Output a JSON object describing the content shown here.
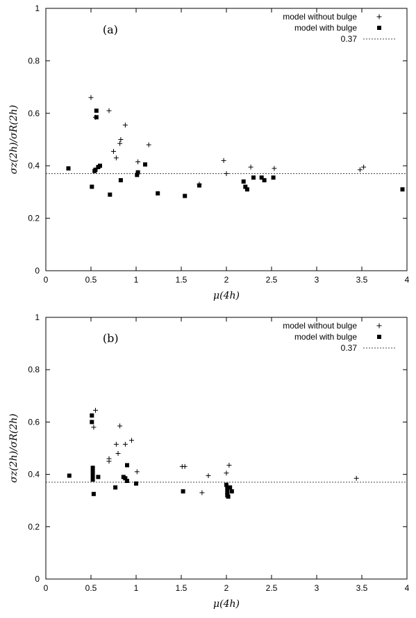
{
  "chart_data": [
    {
      "type": "scatter",
      "panel_label": "(a)",
      "xlabel": "μ(4h)",
      "ylabel": "σz(2h)/σR(2h)",
      "xlim": [
        0,
        4
      ],
      "ylim": [
        0,
        1
      ],
      "xticks": [
        "0",
        "0.5",
        "1",
        "1.5",
        "2",
        "2.5",
        "3",
        "3.5",
        "4"
      ],
      "yticks": [
        "0",
        "0.2",
        "0.4",
        "0.6",
        "0.8",
        "1"
      ],
      "legend_position": "top-right",
      "series": [
        {
          "name": "model without bulge",
          "marker": "plus",
          "points": [
            [
              0.5,
              0.66
            ],
            [
              0.55,
              0.585
            ],
            [
              0.7,
              0.61
            ],
            [
              0.75,
              0.455
            ],
            [
              0.78,
              0.43
            ],
            [
              0.82,
              0.485
            ],
            [
              0.83,
              0.5
            ],
            [
              0.88,
              0.555
            ],
            [
              1.02,
              0.415
            ],
            [
              1.14,
              0.48
            ],
            [
              1.97,
              0.42
            ],
            [
              2.0,
              0.37
            ],
            [
              2.27,
              0.395
            ],
            [
              2.53,
              0.39
            ],
            [
              3.48,
              0.385
            ],
            [
              3.52,
              0.395
            ],
            [
              1.7,
              0.33
            ]
          ]
        },
        {
          "name": "model with bulge",
          "marker": "square",
          "points": [
            [
              0.25,
              0.39
            ],
            [
              0.51,
              0.32
            ],
            [
              0.54,
              0.38
            ],
            [
              0.55,
              0.385
            ],
            [
              0.56,
              0.61
            ],
            [
              0.56,
              0.585
            ],
            [
              0.58,
              0.395
            ],
            [
              0.6,
              0.4
            ],
            [
              0.71,
              0.29
            ],
            [
              0.83,
              0.345
            ],
            [
              1.01,
              0.365
            ],
            [
              1.02,
              0.375
            ],
            [
              1.1,
              0.405
            ],
            [
              1.24,
              0.295
            ],
            [
              1.54,
              0.285
            ],
            [
              1.7,
              0.325
            ],
            [
              2.19,
              0.34
            ],
            [
              2.21,
              0.32
            ],
            [
              2.23,
              0.31
            ],
            [
              2.3,
              0.355
            ],
            [
              2.39,
              0.355
            ],
            [
              2.42,
              0.345
            ],
            [
              2.52,
              0.355
            ],
            [
              3.95,
              0.31
            ]
          ]
        }
      ],
      "reference_line": {
        "name": "0.37",
        "y": 0.37
      }
    },
    {
      "type": "scatter",
      "panel_label": "(b)",
      "xlabel": "μ(4h)",
      "ylabel": "σz(2h)/σR(2h)",
      "xlim": [
        0,
        4
      ],
      "ylim": [
        0,
        1
      ],
      "xticks": [
        "0",
        "0.5",
        "1",
        "1.5",
        "2",
        "2.5",
        "3",
        "3.5",
        "4"
      ],
      "yticks": [
        "0",
        "0.2",
        "0.4",
        "0.6",
        "0.8",
        "1"
      ],
      "legend_position": "top-right",
      "series": [
        {
          "name": "model without bulge",
          "marker": "plus",
          "points": [
            [
              0.53,
              0.58
            ],
            [
              0.55,
              0.645
            ],
            [
              0.7,
              0.46
            ],
            [
              0.7,
              0.45
            ],
            [
              0.78,
              0.515
            ],
            [
              0.8,
              0.48
            ],
            [
              0.82,
              0.585
            ],
            [
              0.88,
              0.515
            ],
            [
              0.95,
              0.53
            ],
            [
              1.01,
              0.41
            ],
            [
              1.51,
              0.43
            ],
            [
              1.54,
              0.43
            ],
            [
              1.73,
              0.33
            ],
            [
              1.8,
              0.395
            ],
            [
              2.0,
              0.405
            ],
            [
              2.03,
              0.435
            ],
            [
              3.44,
              0.385
            ]
          ]
        },
        {
          "name": "model with bulge",
          "marker": "square",
          "points": [
            [
              0.26,
              0.395
            ],
            [
              0.51,
              0.625
            ],
            [
              0.51,
              0.6
            ],
            [
              0.52,
              0.425
            ],
            [
              0.52,
              0.41
            ],
            [
              0.52,
              0.395
            ],
            [
              0.52,
              0.38
            ],
            [
              0.53,
              0.325
            ],
            [
              0.58,
              0.39
            ],
            [
              0.77,
              0.35
            ],
            [
              0.86,
              0.39
            ],
            [
              0.88,
              0.385
            ],
            [
              0.9,
              0.435
            ],
            [
              0.9,
              0.375
            ],
            [
              1.0,
              0.365
            ],
            [
              1.52,
              0.335
            ],
            [
              2.0,
              0.36
            ],
            [
              2.01,
              0.345
            ],
            [
              2.01,
              0.33
            ],
            [
              2.01,
              0.32
            ],
            [
              2.02,
              0.315
            ],
            [
              2.04,
              0.35
            ],
            [
              2.06,
              0.335
            ]
          ]
        }
      ],
      "reference_line": {
        "name": "0.37",
        "y": 0.37
      }
    }
  ]
}
